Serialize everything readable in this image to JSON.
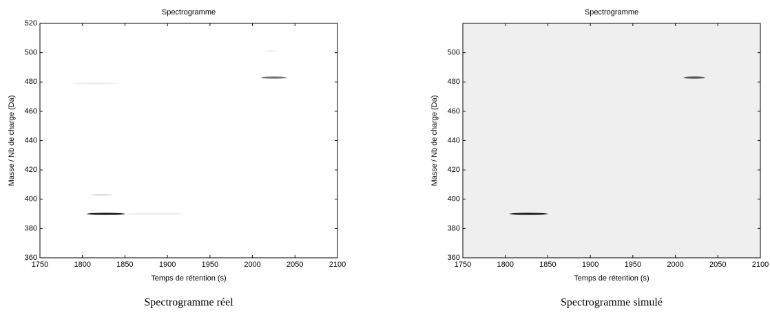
{
  "chart_data": [
    {
      "type": "spectrogram",
      "title": "Spectrogramme",
      "x_label": "Temps de rétention (s)",
      "y_label": "Masse / Nb de charge (Da)",
      "caption": "Spectrogramme réel",
      "background": "#ffffff",
      "xlim": [
        1750,
        2100
      ],
      "xticks": [
        1750,
        1800,
        1850,
        1900,
        1950,
        2000,
        2050,
        2100
      ],
      "ylim": [
        360,
        520
      ],
      "yticks": [
        360,
        380,
        400,
        420,
        440,
        460,
        480,
        500,
        520
      ],
      "streaks": [
        {
          "x": [
            1805,
            1850
          ],
          "y": 390,
          "color": "#222222"
        },
        {
          "x": [
            1850,
            1920
          ],
          "y": 390,
          "color": "#eeeeee"
        },
        {
          "x": [
            2010,
            2040
          ],
          "y": 483,
          "color": "#777777"
        },
        {
          "x": [
            1790,
            1840
          ],
          "y": 479,
          "color": "#eeeeee"
        },
        {
          "x": [
            1810,
            1835
          ],
          "y": 403,
          "color": "#e4e4e4"
        },
        {
          "x": [
            2015,
            2030
          ],
          "y": 501,
          "color": "#f2f2f2"
        }
      ]
    },
    {
      "type": "spectrogram",
      "title": "Spectrogramme",
      "x_label": "Temps de rétention (s)",
      "y_label": "Masse / Nb de charge (Da)",
      "caption": "Spectrogramme simulé",
      "background": "#efefef",
      "xlim": [
        1750,
        2100
      ],
      "xticks": [
        1750,
        1800,
        1850,
        1900,
        1950,
        2000,
        2050,
        2100
      ],
      "ylim": [
        360,
        520
      ],
      "yticks": [
        360,
        380,
        400,
        420,
        440,
        460,
        480,
        500
      ],
      "streaks": [
        {
          "x": [
            1805,
            1850
          ],
          "y": 390,
          "color": "#222222"
        },
        {
          "x": [
            2010,
            2035
          ],
          "y": 483,
          "color": "#555555"
        }
      ]
    }
  ]
}
